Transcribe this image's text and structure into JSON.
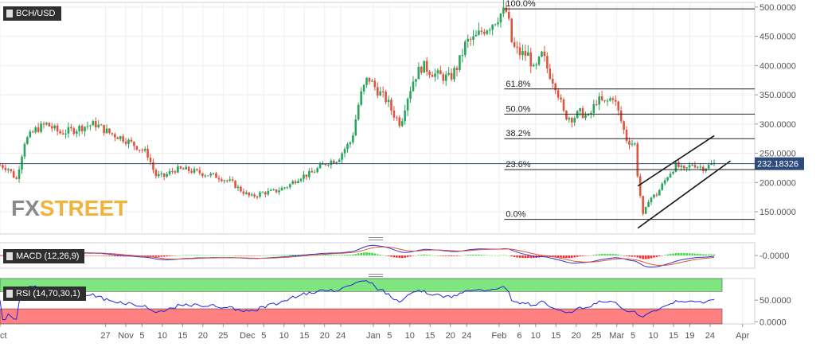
{
  "symbol": "BCH/USD",
  "macd_label": "MACD (12,26,9)",
  "rsi_label": "RSI (14,70,30,1)",
  "logo": {
    "part1": "FX",
    "part2": "STREET"
  },
  "colors": {
    "up": "#26a65b",
    "down": "#e0533d",
    "grid": "#eeeeee",
    "axis": "#555555",
    "price_line": "#2c4a7a",
    "macd_line": "#3333cc",
    "signal_line": "#e0533d",
    "hist_pos": "#3fdc3f",
    "hist_neg": "#ff2a2a",
    "rsi_line": "#2222dd",
    "rsi_over": "#7fe57f",
    "rsi_under": "#ff8080"
  },
  "chart_data": {
    "type": "candlestick",
    "title": "BCH/USD",
    "current_price": "232.18326",
    "ylim": [
      112,
      508
    ],
    "y_ticks": [
      "500.0000",
      "450.0000",
      "400.0000",
      "350.0000",
      "300.0000",
      "250.0000",
      "200.0000",
      "150.0000"
    ],
    "y_tick_values": [
      500,
      450,
      400,
      350,
      300,
      250,
      200,
      150
    ],
    "x_ticks": [
      "Oct",
      "27",
      "Nov",
      "5",
      "10",
      "15",
      "20",
      "25",
      "Dec",
      "5",
      "10",
      "15",
      "20",
      "24",
      "Jan",
      "5",
      "10",
      "15",
      "20",
      "24",
      "Feb",
      "6",
      "10",
      "15",
      "20",
      "25",
      "Mar",
      "5",
      "10",
      "15",
      "19",
      "24",
      "Apr"
    ],
    "x_tick_days": [
      0,
      26,
      31,
      35,
      40,
      45,
      50,
      55,
      61,
      65,
      70,
      75,
      80,
      84,
      92,
      96,
      101,
      106,
      111,
      115,
      123,
      128,
      132,
      137,
      142,
      147,
      152,
      156,
      161,
      166,
      170,
      175,
      183
    ],
    "x_days_max": 186,
    "price_keypoints": [
      [
        0,
        230
      ],
      [
        3,
        224
      ],
      [
        6,
        205
      ],
      [
        9,
        270
      ],
      [
        13,
        290
      ],
      [
        17,
        300
      ],
      [
        22,
        285
      ],
      [
        27,
        290
      ],
      [
        30,
        295
      ],
      [
        35,
        300
      ],
      [
        40,
        285
      ],
      [
        45,
        276
      ],
      [
        50,
        262
      ],
      [
        54,
        250
      ],
      [
        57,
        212
      ],
      [
        60,
        210
      ],
      [
        64,
        222
      ],
      [
        68,
        222
      ],
      [
        75,
        215
      ],
      [
        80,
        210
      ],
      [
        85,
        200
      ],
      [
        88,
        188
      ],
      [
        92,
        175
      ],
      [
        96,
        182
      ],
      [
        101,
        185
      ],
      [
        106,
        195
      ],
      [
        110,
        210
      ],
      [
        114,
        215
      ],
      [
        117,
        225
      ],
      [
        120,
        235
      ],
      [
        124,
        240
      ],
      [
        126,
        255
      ],
      [
        129,
        272
      ],
      [
        132,
        345
      ],
      [
        135,
        380
      ],
      [
        138,
        360
      ],
      [
        142,
        340
      ],
      [
        144,
        320
      ],
      [
        147,
        300
      ],
      [
        149,
        340
      ],
      [
        152,
        380
      ],
      [
        155,
        400
      ],
      [
        160,
        384
      ],
      [
        165,
        378
      ],
      [
        168,
        400
      ],
      [
        171,
        440
      ],
      [
        174,
        445
      ],
      [
        177,
        460
      ],
      [
        180,
        470
      ],
      [
        184,
        490
      ],
      [
        186,
        492
      ],
      [
        188,
        432
      ],
      [
        191,
        420
      ],
      [
        194,
        418
      ],
      [
        196,
        388
      ],
      [
        199,
        420
      ],
      [
        201,
        392
      ],
      [
        204,
        365
      ],
      [
        207,
        315
      ],
      [
        210,
        310
      ],
      [
        213,
        320
      ],
      [
        216,
        310
      ],
      [
        219,
        342
      ],
      [
        222,
        335
      ],
      [
        225,
        348
      ],
      [
        227,
        318
      ],
      [
        230,
        272
      ],
      [
        233,
        265
      ],
      [
        234,
        208
      ],
      [
        236,
        140
      ],
      [
        238,
        172
      ],
      [
        241,
        180
      ],
      [
        245,
        212
      ],
      [
        248,
        230
      ],
      [
        251,
        220
      ],
      [
        254,
        232
      ],
      [
        258,
        225
      ],
      [
        262,
        232
      ]
    ],
    "fib_levels": [
      {
        "label": "100.0%",
        "value": 497
      },
      {
        "label": "61.8%",
        "value": 360
      },
      {
        "label": "50.0%",
        "value": 317
      },
      {
        "label": "38.2%",
        "value": 275
      },
      {
        "label": "23.6%",
        "value": 222
      },
      {
        "label": "0.0%",
        "value": 137
      }
    ],
    "channel": {
      "upper": [
        [
          234,
          194
        ],
        [
          262,
          280
        ]
      ],
      "lower": [
        [
          234,
          122
        ],
        [
          268,
          237
        ]
      ]
    },
    "macd": {
      "ylim": [
        -0.3,
        0.15
      ],
      "y_ticks": [
        "-0.0000"
      ]
    },
    "rsi": {
      "ylim": [
        -5,
        100
      ],
      "y_ticks": [
        "50.0000",
        "0.0000"
      ],
      "upper": 70,
      "lower": 30
    }
  }
}
